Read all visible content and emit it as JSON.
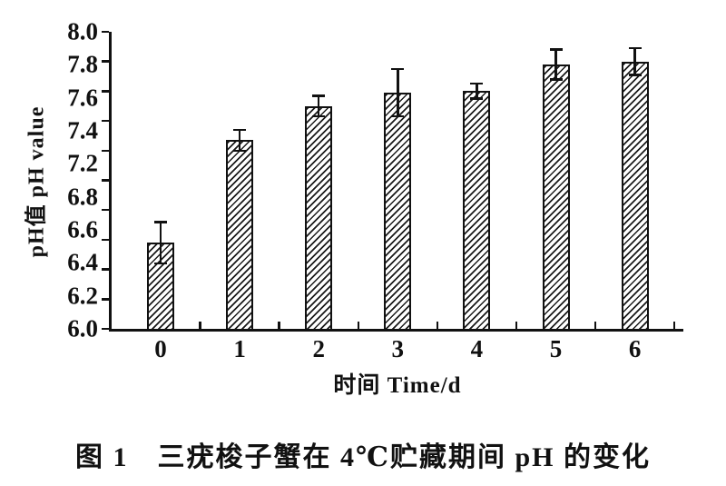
{
  "figure": {
    "caption": "图 1　三疣梭子蟹在 4℃贮藏期间 pH 的变化"
  },
  "chart_data": {
    "type": "bar",
    "title": "图 1 三疣梭子蟹在 4℃贮藏期间 pH 的变化",
    "xlabel": "时间  Time/d",
    "ylabel": "pH值 pH value",
    "categories": [
      "0",
      "1",
      "2",
      "3",
      "4",
      "5",
      "6"
    ],
    "series": [
      {
        "name": "pH",
        "values": [
          6.58,
          7.27,
          7.5,
          7.59,
          7.6,
          7.78,
          7.8
        ],
        "errors": [
          0.14,
          0.07,
          0.07,
          0.16,
          0.05,
          0.1,
          0.09
        ]
      }
    ],
    "ylim": [
      6.0,
      8.0
    ],
    "ytick_step": 0.2,
    "ytick_labels_visible": [
      "8.0",
      "7.8",
      "7.6",
      "7.4",
      "7.2",
      "6.8",
      "6.6",
      "6.4",
      "6.2",
      "6.0"
    ],
    "grid": false,
    "legend": null,
    "bar_fill": "diagonal-hatch",
    "colors": {
      "ink": "#111111",
      "paper": "#ffffff"
    }
  }
}
